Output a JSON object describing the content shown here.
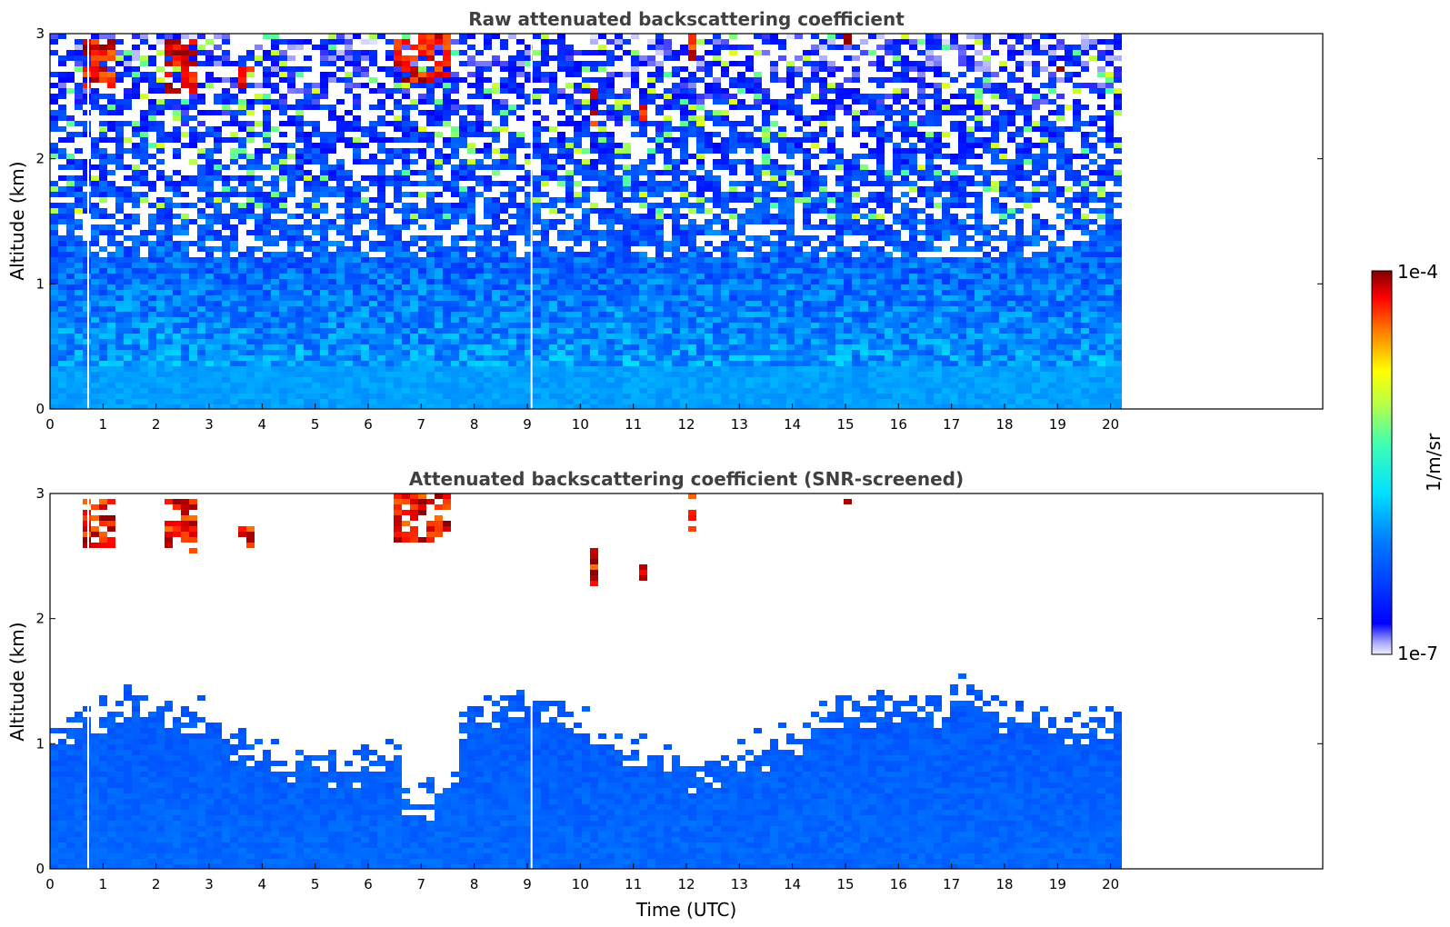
{
  "chart_data": [
    {
      "type": "heatmap",
      "title": "Raw attenuated backscattering coefficient",
      "xlabel": "",
      "ylabel": "Altitude (km)",
      "xlim": [
        0,
        24
      ],
      "ylim": [
        0,
        3
      ],
      "x_ticks": [
        "0",
        "1",
        "2",
        "3",
        "4",
        "5",
        "6",
        "7",
        "8",
        "9",
        "10",
        "11",
        "12",
        "13",
        "14",
        "15",
        "16",
        "17",
        "18",
        "19",
        "20"
      ],
      "y_ticks": [
        "0",
        "1",
        "2",
        "3"
      ],
      "data_end_time": 20.15,
      "gap_times": [
        0.72,
        9.08
      ],
      "cloud_layers": [
        {
          "t0": 0.55,
          "t1": 1.25,
          "z0": 2.55,
          "z1": 2.95
        },
        {
          "t0": 2.2,
          "t1": 2.8,
          "z0": 2.5,
          "z1": 2.95
        },
        {
          "t0": 3.5,
          "t1": 3.9,
          "z0": 2.55,
          "z1": 2.75
        },
        {
          "t0": 6.5,
          "t1": 7.6,
          "z0": 2.6,
          "z1": 3.0
        },
        {
          "t0": 10.2,
          "t1": 10.3,
          "z0": 2.25,
          "z1": 2.55
        },
        {
          "t0": 11.05,
          "t1": 11.25,
          "z0": 2.3,
          "z1": 2.45
        },
        {
          "t0": 12.0,
          "t1": 12.2,
          "z0": 2.7,
          "z1": 3.0
        },
        {
          "t0": 14.9,
          "t1": 15.1,
          "z0": 2.92,
          "z1": 3.0
        },
        {
          "t0": 19.05,
          "t1": 19.2,
          "z0": 2.65,
          "z1": 2.72
        }
      ]
    },
    {
      "type": "heatmap",
      "title": "Attenuated backscattering coefficient (SNR-screened)",
      "xlabel": "Time (UTC)",
      "ylabel": "Altitude (km)",
      "xlim": [
        0,
        24
      ],
      "ylim": [
        0,
        3
      ],
      "x_ticks": [
        "0",
        "1",
        "2",
        "3",
        "4",
        "5",
        "6",
        "7",
        "8",
        "9",
        "10",
        "11",
        "12",
        "13",
        "14",
        "15",
        "16",
        "17",
        "18",
        "19",
        "20"
      ],
      "y_ticks": [
        "0",
        "1",
        "2",
        "3"
      ],
      "data_end_time": 20.15,
      "gap_times": [
        0.72,
        9.08
      ]
    }
  ],
  "colorbar": {
    "label": "1/m/sr",
    "max_label": "1e-4",
    "min_label": "1e-7",
    "scale": "log",
    "range": [
      1e-07,
      0.0001
    ],
    "colormap": "jet"
  }
}
